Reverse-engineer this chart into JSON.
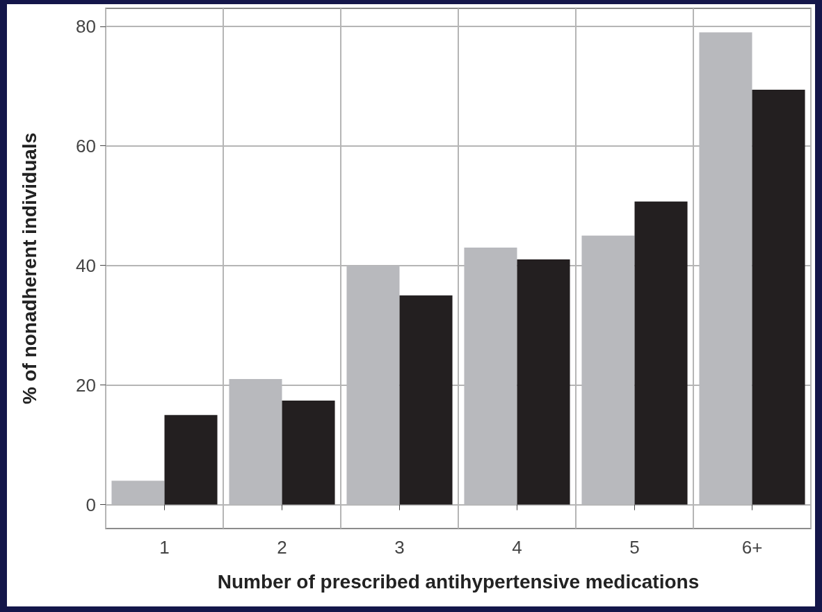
{
  "chart_data": {
    "type": "bar",
    "xlabel": "Number of prescribed antihypertensive medications",
    "ylabel": "% of nonadherent individuals",
    "categories": [
      "1",
      "2",
      "3",
      "4",
      "5",
      "6+"
    ],
    "series": [
      {
        "color": "#b8b9bd",
        "values": [
          4,
          21,
          40,
          43,
          45,
          79
        ]
      },
      {
        "color": "#231f20",
        "values": [
          15,
          17.4,
          35,
          41,
          50.7,
          69.4
        ]
      }
    ],
    "ylim": [
      -4,
      83
    ],
    "yticks": [
      0,
      20,
      40,
      60,
      80
    ],
    "grid": true
  }
}
